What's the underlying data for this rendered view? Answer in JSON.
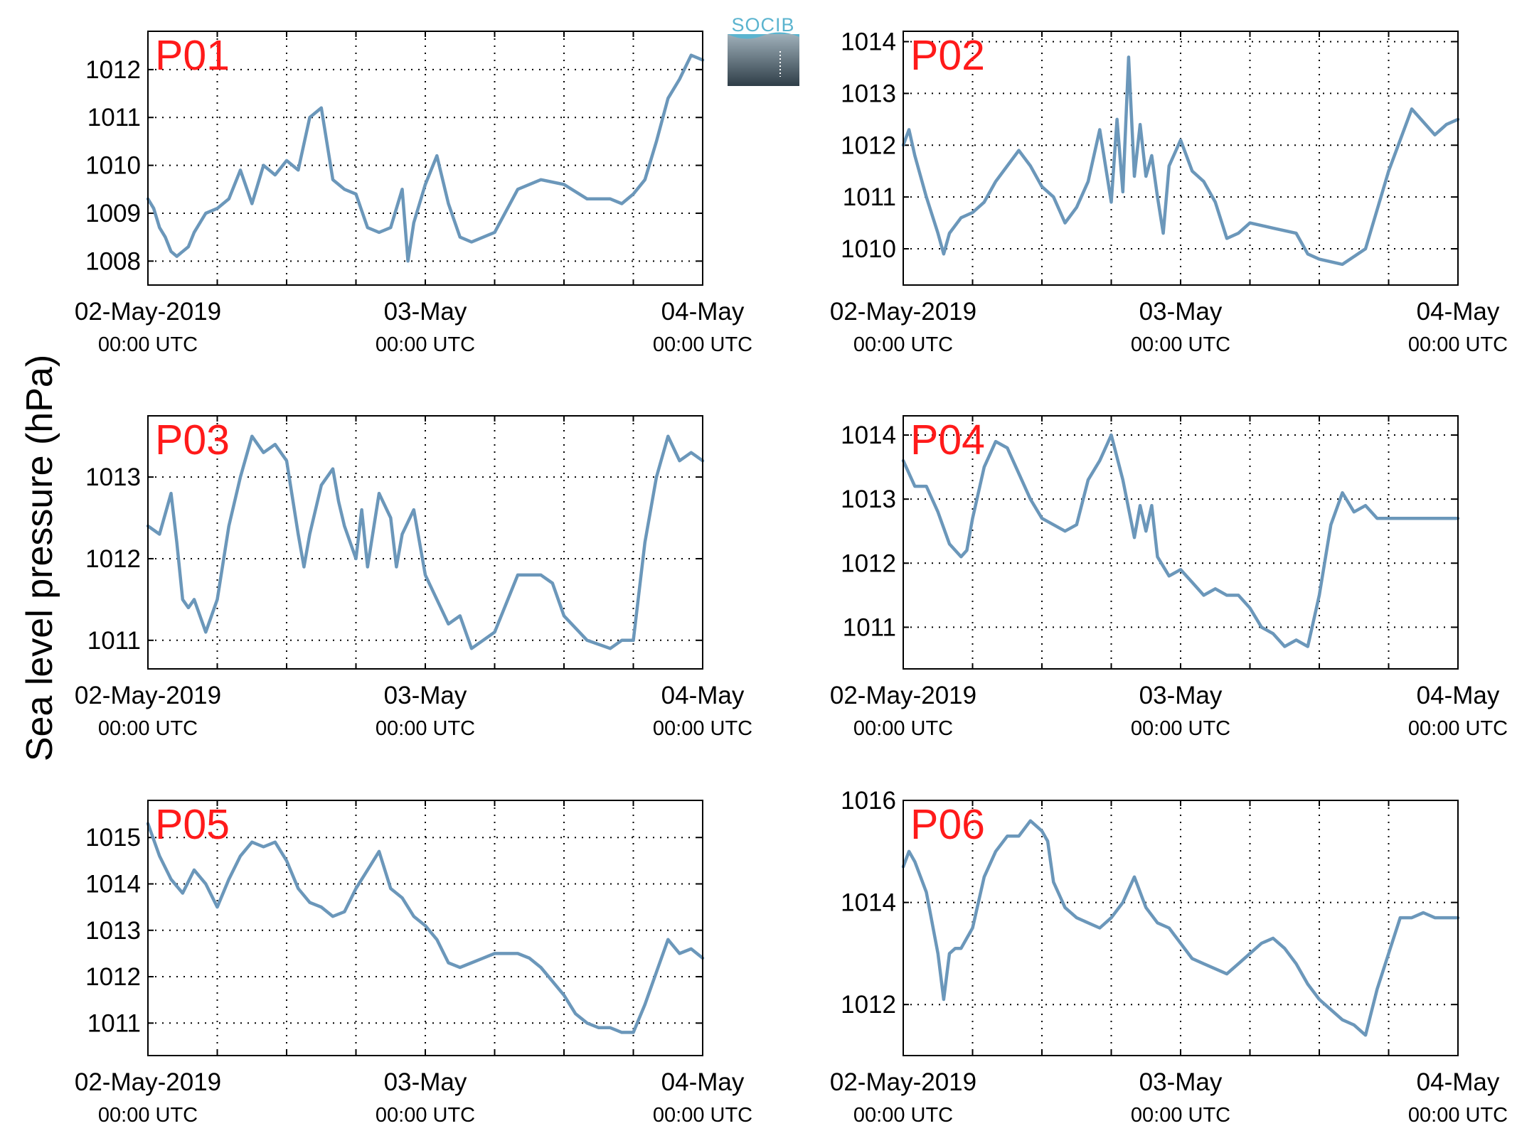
{
  "figure": {
    "ylabel": "Sea level pressure (hPa)",
    "logo_text": "SOCIB",
    "colors": {
      "line": "#6b97ba",
      "label": "#ff1a1a"
    }
  },
  "chart_data": [
    {
      "type": "line",
      "title": "P01",
      "ylim": [
        1007.5,
        1012.8
      ],
      "yticks": [
        1008,
        1009,
        1010,
        1011,
        1012
      ],
      "x_ticks": [
        {
          "main": "02-May-2019",
          "sub": "00:00 UTC"
        },
        {
          "main": "03-May",
          "sub": "00:00 UTC"
        },
        {
          "main": "04-May",
          "sub": "00:00 UTC"
        }
      ],
      "xlim_hours": [
        0,
        48
      ],
      "series": [
        {
          "x_hours": [
            0,
            0.5,
            1,
            1.5,
            2,
            2.5,
            3,
            3.5,
            4,
            5,
            6,
            7,
            8,
            9,
            10,
            11,
            12,
            13,
            14,
            15,
            16,
            16.5,
            17,
            18,
            19,
            20,
            21,
            22,
            22.5,
            23,
            24,
            25,
            26,
            27,
            28,
            30,
            32,
            34,
            36,
            38,
            40,
            41,
            42,
            43,
            44,
            45,
            46,
            47,
            48
          ],
          "y": [
            1009.3,
            1009.1,
            1008.7,
            1008.5,
            1008.2,
            1008.1,
            1008.2,
            1008.3,
            1008.6,
            1009.0,
            1009.1,
            1009.3,
            1009.9,
            1009.2,
            1010.0,
            1009.8,
            1010.1,
            1009.9,
            1011.0,
            1011.2,
            1009.7,
            1009.6,
            1009.5,
            1009.4,
            1008.7,
            1008.6,
            1008.7,
            1009.5,
            1008.0,
            1008.8,
            1009.6,
            1010.2,
            1009.2,
            1008.5,
            1008.4,
            1008.6,
            1009.5,
            1009.7,
            1009.6,
            1009.3,
            1009.3,
            1009.2,
            1009.4,
            1009.7,
            1010.5,
            1011.4,
            1011.8,
            1012.3,
            1012.2
          ]
        }
      ]
    },
    {
      "type": "line",
      "title": "P02",
      "ylim": [
        1009.3,
        1014.2
      ],
      "yticks": [
        1010,
        1011,
        1012,
        1013,
        1014
      ],
      "x_ticks": [
        {
          "main": "02-May-2019",
          "sub": "00:00 UTC"
        },
        {
          "main": "03-May",
          "sub": "00:00 UTC"
        },
        {
          "main": "04-May",
          "sub": "00:00 UTC"
        }
      ],
      "xlim_hours": [
        0,
        48
      ],
      "series": [
        {
          "x_hours": [
            0,
            0.5,
            1,
            2,
            3,
            3.5,
            4,
            5,
            6,
            7,
            8,
            9,
            10,
            11,
            12,
            13,
            14,
            15,
            16,
            17,
            18,
            18.5,
            19,
            19.5,
            20,
            20.5,
            21,
            21.5,
            22,
            22.5,
            23,
            24,
            25,
            26,
            27,
            28,
            29,
            30,
            32,
            34,
            35,
            36,
            38,
            40,
            42,
            44,
            46,
            47,
            48
          ],
          "y": [
            1012.0,
            1012.3,
            1011.8,
            1011.0,
            1010.3,
            1009.9,
            1010.3,
            1010.6,
            1010.7,
            1010.9,
            1011.3,
            1011.6,
            1011.9,
            1011.6,
            1011.2,
            1011.0,
            1010.5,
            1010.8,
            1011.3,
            1012.3,
            1010.9,
            1012.5,
            1011.1,
            1013.7,
            1011.4,
            1012.4,
            1011.4,
            1011.8,
            1011.0,
            1010.3,
            1011.6,
            1012.1,
            1011.5,
            1011.3,
            1010.9,
            1010.2,
            1010.3,
            1010.5,
            1010.4,
            1010.3,
            1009.9,
            1009.8,
            1009.7,
            1010.0,
            1011.5,
            1012.7,
            1012.2,
            1012.4,
            1012.5
          ]
        }
      ]
    },
    {
      "type": "line",
      "title": "P03",
      "ylim": [
        1010.65,
        1013.75
      ],
      "yticks": [
        1011,
        1012,
        1013
      ],
      "x_ticks": [
        {
          "main": "02-May-2019",
          "sub": "00:00 UTC"
        },
        {
          "main": "03-May",
          "sub": "00:00 UTC"
        },
        {
          "main": "04-May",
          "sub": "00:00 UTC"
        }
      ],
      "xlim_hours": [
        0,
        48
      ],
      "series": [
        {
          "x_hours": [
            0,
            1,
            2,
            2.5,
            3,
            3.5,
            4,
            5,
            6,
            7,
            8,
            9,
            10,
            11,
            12,
            13,
            13.5,
            14,
            15,
            16,
            16.5,
            17,
            18,
            18.5,
            19,
            20,
            21,
            21.5,
            22,
            23,
            24,
            25,
            26,
            27,
            28,
            29,
            30,
            32,
            34,
            35,
            36,
            38,
            40,
            41,
            42,
            43,
            44,
            45,
            46,
            47,
            48
          ],
          "y": [
            1012.4,
            1012.3,
            1012.8,
            1012.2,
            1011.5,
            1011.4,
            1011.5,
            1011.1,
            1011.5,
            1012.4,
            1013.0,
            1013.5,
            1013.3,
            1013.4,
            1013.2,
            1012.3,
            1011.9,
            1012.3,
            1012.9,
            1013.1,
            1012.7,
            1012.4,
            1012.0,
            1012.6,
            1011.9,
            1012.8,
            1012.5,
            1011.9,
            1012.3,
            1012.6,
            1011.8,
            1011.5,
            1011.2,
            1011.3,
            1010.9,
            1011.0,
            1011.1,
            1011.8,
            1011.8,
            1011.7,
            1011.3,
            1011.0,
            1010.9,
            1011.0,
            1011.0,
            1012.2,
            1013.0,
            1013.5,
            1013.2,
            1013.3,
            1013.2
          ]
        }
      ]
    },
    {
      "type": "line",
      "title": "P04",
      "ylim": [
        1010.35,
        1014.3
      ],
      "yticks": [
        1011,
        1012,
        1013,
        1014
      ],
      "x_ticks": [
        {
          "main": "02-May-2019",
          "sub": "00:00 UTC"
        },
        {
          "main": "03-May",
          "sub": "00:00 UTC"
        },
        {
          "main": "04-May",
          "sub": "00:00 UTC"
        }
      ],
      "xlim_hours": [
        0,
        48
      ],
      "series": [
        {
          "x_hours": [
            0,
            1,
            2,
            3,
            4,
            5,
            5.5,
            6,
            7,
            8,
            9,
            10,
            11,
            12,
            13,
            14,
            15,
            16,
            17,
            18,
            19,
            20,
            20.5,
            21,
            21.5,
            22,
            23,
            24,
            25,
            26,
            27,
            28,
            29,
            30,
            31,
            32,
            33,
            34,
            35,
            36,
            37,
            38,
            39,
            40,
            41,
            42,
            43,
            44,
            45,
            46,
            47,
            48
          ],
          "y": [
            1013.6,
            1013.2,
            1013.2,
            1012.8,
            1012.3,
            1012.1,
            1012.2,
            1012.7,
            1013.5,
            1013.9,
            1013.8,
            1013.4,
            1013.0,
            1012.7,
            1012.6,
            1012.5,
            1012.6,
            1013.3,
            1013.6,
            1014.0,
            1013.3,
            1012.4,
            1012.9,
            1012.5,
            1012.9,
            1012.1,
            1011.8,
            1011.9,
            1011.7,
            1011.5,
            1011.6,
            1011.5,
            1011.5,
            1011.3,
            1011.0,
            1010.9,
            1010.7,
            1010.8,
            1010.7,
            1011.5,
            1012.6,
            1013.1,
            1012.8,
            1012.9,
            1012.7,
            1012.7,
            1012.7,
            1012.7,
            1012.7,
            1012.7,
            1012.7,
            1012.7
          ]
        }
      ]
    },
    {
      "type": "line",
      "title": "P05",
      "ylim": [
        1010.3,
        1015.8
      ],
      "yticks": [
        1011,
        1012,
        1013,
        1014,
        1015
      ],
      "x_ticks": [
        {
          "main": "02-May-2019",
          "sub": "00:00 UTC"
        },
        {
          "main": "03-May",
          "sub": "00:00 UTC"
        },
        {
          "main": "04-May",
          "sub": "00:00 UTC"
        }
      ],
      "xlim_hours": [
        0,
        48
      ],
      "series": [
        {
          "x_hours": [
            0,
            1,
            2,
            3,
            4,
            5,
            6,
            7,
            8,
            9,
            10,
            11,
            12,
            13,
            14,
            15,
            16,
            17,
            18,
            19,
            20,
            21,
            22,
            23,
            24,
            25,
            26,
            27,
            28,
            29,
            30,
            31,
            32,
            33,
            34,
            35,
            36,
            37,
            38,
            39,
            40,
            41,
            42,
            43,
            44,
            45,
            46,
            47,
            48
          ],
          "y": [
            1015.3,
            1014.6,
            1014.1,
            1013.8,
            1014.3,
            1014.0,
            1013.5,
            1014.1,
            1014.6,
            1014.9,
            1014.8,
            1014.9,
            1014.5,
            1013.9,
            1013.6,
            1013.5,
            1013.3,
            1013.4,
            1013.9,
            1014.3,
            1014.7,
            1013.9,
            1013.7,
            1013.3,
            1013.1,
            1012.8,
            1012.3,
            1012.2,
            1012.3,
            1012.4,
            1012.5,
            1012.5,
            1012.5,
            1012.4,
            1012.2,
            1011.9,
            1011.6,
            1011.2,
            1011.0,
            1010.9,
            1010.9,
            1010.8,
            1010.8,
            1011.4,
            1012.1,
            1012.8,
            1012.5,
            1012.6,
            1012.4
          ]
        }
      ]
    },
    {
      "type": "line",
      "title": "P06",
      "ylim": [
        1011.0,
        1016.0
      ],
      "yticks": [
        1012,
        1014,
        1016
      ],
      "x_ticks": [
        {
          "main": "02-May-2019",
          "sub": "00:00 UTC"
        },
        {
          "main": "03-May",
          "sub": "00:00 UTC"
        },
        {
          "main": "04-May",
          "sub": "00:00 UTC"
        }
      ],
      "xlim_hours": [
        0,
        48
      ],
      "series": [
        {
          "x_hours": [
            0,
            0.5,
            1,
            2,
            3,
            3.5,
            4,
            4.5,
            5,
            6,
            7,
            8,
            9,
            10,
            11,
            12,
            12.5,
            13,
            14,
            15,
            16,
            17,
            18,
            19,
            20,
            21,
            22,
            23,
            24,
            25,
            26,
            27,
            28,
            29,
            30,
            31,
            32,
            33,
            34,
            35,
            36,
            37,
            38,
            39,
            40,
            41,
            42,
            43,
            44,
            45,
            46,
            47,
            48
          ],
          "y": [
            1014.7,
            1015.0,
            1014.8,
            1014.2,
            1013.0,
            1012.1,
            1013.0,
            1013.1,
            1013.1,
            1013.5,
            1014.5,
            1015.0,
            1015.3,
            1015.3,
            1015.6,
            1015.4,
            1015.2,
            1014.4,
            1013.9,
            1013.7,
            1013.6,
            1013.5,
            1013.7,
            1014.0,
            1014.5,
            1013.9,
            1013.6,
            1013.5,
            1013.2,
            1012.9,
            1012.8,
            1012.7,
            1012.6,
            1012.8,
            1013.0,
            1013.2,
            1013.3,
            1013.1,
            1012.8,
            1012.4,
            1012.1,
            1011.9,
            1011.7,
            1011.6,
            1011.4,
            1012.3,
            1013.0,
            1013.7,
            1013.7,
            1013.8,
            1013.7,
            1013.7,
            1013.7
          ]
        }
      ]
    }
  ]
}
